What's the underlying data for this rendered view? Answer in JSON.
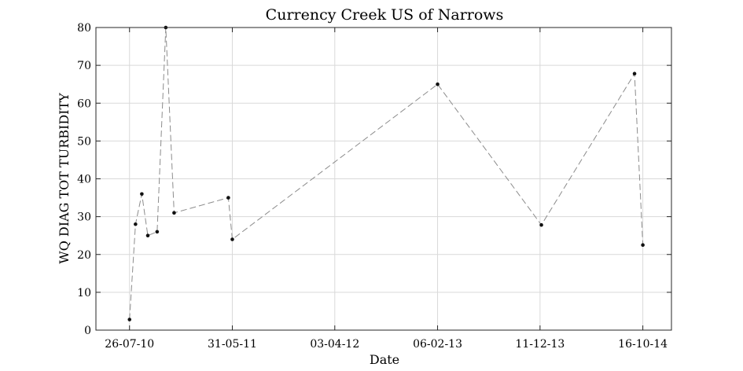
{
  "chart_data": {
    "type": "line",
    "title": "Currency Creek US of Narrows",
    "xlabel": "Date",
    "ylabel": "WQ DIAG TOT TURBIDITY",
    "x_axis_type": "date",
    "xlim": [
      "2010-04-16",
      "2015-01-10"
    ],
    "ylim": [
      0,
      80
    ],
    "yticks": [
      0,
      10,
      20,
      30,
      40,
      50,
      60,
      70,
      80
    ],
    "xticks": [
      {
        "date": "2010-07-26",
        "label": "26-07-10"
      },
      {
        "date": "2011-05-31",
        "label": "31-05-11"
      },
      {
        "date": "2012-04-03",
        "label": "03-04-12"
      },
      {
        "date": "2013-02-06",
        "label": "06-02-13"
      },
      {
        "date": "2013-12-11",
        "label": "11-12-13"
      },
      {
        "date": "2014-10-16",
        "label": "16-10-14"
      }
    ],
    "grid": true,
    "series_style": {
      "line_color": "#8c8c8c",
      "marker_color": "#111111",
      "line_style": "dashed"
    },
    "series": [
      {
        "points": [
          {
            "x": "2010-07-26",
            "y": 2.8
          },
          {
            "x": "2010-08-13",
            "y": 28
          },
          {
            "x": "2010-09-01",
            "y": 36
          },
          {
            "x": "2010-09-19",
            "y": 25
          },
          {
            "x": "2010-10-17",
            "y": 26
          },
          {
            "x": "2010-11-12",
            "y": 80
          },
          {
            "x": "2010-12-07",
            "y": 31
          },
          {
            "x": "2011-05-19",
            "y": 35
          },
          {
            "x": "2011-05-31",
            "y": 24
          },
          {
            "x": "2013-02-06",
            "y": 65
          },
          {
            "x": "2013-12-15",
            "y": 27.8
          },
          {
            "x": "2014-09-21",
            "y": 67.8
          },
          {
            "x": "2014-10-16",
            "y": 22.5
          }
        ]
      }
    ]
  }
}
